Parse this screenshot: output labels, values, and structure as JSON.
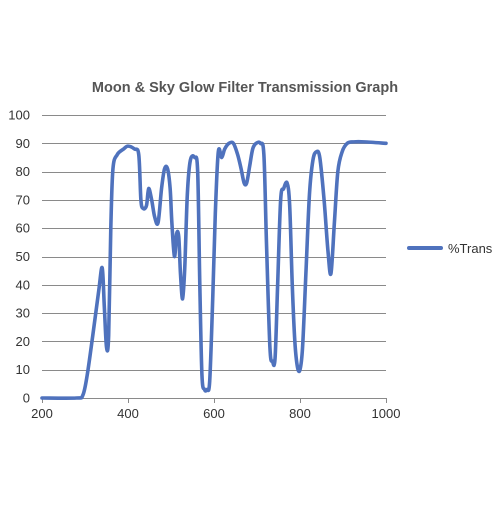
{
  "chart_data": {
    "type": "line",
    "title": "Moon & Sky Glow Filter Transmission Graph",
    "xlabel": "",
    "ylabel": "",
    "xlim": [
      200,
      1000
    ],
    "ylim": [
      0,
      100
    ],
    "x_ticks": [
      200,
      400,
      600,
      800,
      1000
    ],
    "y_ticks": [
      0,
      10,
      20,
      30,
      40,
      50,
      60,
      70,
      80,
      90,
      100
    ],
    "grid": "horizontal",
    "legend": "right",
    "series": [
      {
        "name": "%Trans",
        "color": "#4f72bd",
        "points": [
          [
            200,
            0
          ],
          [
            280,
            0
          ],
          [
            295,
            1
          ],
          [
            305,
            8
          ],
          [
            318,
            22
          ],
          [
            332,
            38
          ],
          [
            340,
            46
          ],
          [
            345,
            32
          ],
          [
            350,
            18
          ],
          [
            355,
            22
          ],
          [
            360,
            60
          ],
          [
            365,
            81
          ],
          [
            375,
            86
          ],
          [
            390,
            88
          ],
          [
            400,
            89
          ],
          [
            415,
            88
          ],
          [
            425,
            86
          ],
          [
            430,
            70
          ],
          [
            435,
            67
          ],
          [
            443,
            68
          ],
          [
            448,
            74
          ],
          [
            455,
            70
          ],
          [
            462,
            64
          ],
          [
            470,
            62
          ],
          [
            478,
            74
          ],
          [
            485,
            81
          ],
          [
            492,
            81
          ],
          [
            498,
            74
          ],
          [
            502,
            62
          ],
          [
            508,
            50
          ],
          [
            513,
            58
          ],
          [
            518,
            57
          ],
          [
            522,
            44
          ],
          [
            527,
            35
          ],
          [
            532,
            46
          ],
          [
            538,
            72
          ],
          [
            545,
            84
          ],
          [
            555,
            85
          ],
          [
            562,
            80
          ],
          [
            567,
            40
          ],
          [
            572,
            8
          ],
          [
            578,
            3
          ],
          [
            584,
            3
          ],
          [
            590,
            6
          ],
          [
            597,
            35
          ],
          [
            603,
            65
          ],
          [
            610,
            87
          ],
          [
            618,
            85
          ],
          [
            625,
            88
          ],
          [
            635,
            90
          ],
          [
            645,
            90
          ],
          [
            655,
            86
          ],
          [
            663,
            81
          ],
          [
            670,
            76
          ],
          [
            676,
            76
          ],
          [
            683,
            82
          ],
          [
            690,
            88
          ],
          [
            698,
            90
          ],
          [
            708,
            90
          ],
          [
            716,
            86
          ],
          [
            722,
            55
          ],
          [
            730,
            18
          ],
          [
            736,
            13
          ],
          [
            742,
            14
          ],
          [
            748,
            40
          ],
          [
            755,
            70
          ],
          [
            762,
            74
          ],
          [
            770,
            76
          ],
          [
            776,
            68
          ],
          [
            782,
            40
          ],
          [
            788,
            20
          ],
          [
            794,
            11
          ],
          [
            800,
            10
          ],
          [
            806,
            18
          ],
          [
            814,
            45
          ],
          [
            822,
            72
          ],
          [
            830,
            84
          ],
          [
            838,
            87
          ],
          [
            846,
            85
          ],
          [
            856,
            70
          ],
          [
            865,
            52
          ],
          [
            872,
            44
          ],
          [
            880,
            62
          ],
          [
            888,
            80
          ],
          [
            898,
            87
          ],
          [
            910,
            90
          ],
          [
            925,
            90.5
          ],
          [
            950,
            90.5
          ],
          [
            1000,
            90
          ]
        ]
      }
    ]
  }
}
